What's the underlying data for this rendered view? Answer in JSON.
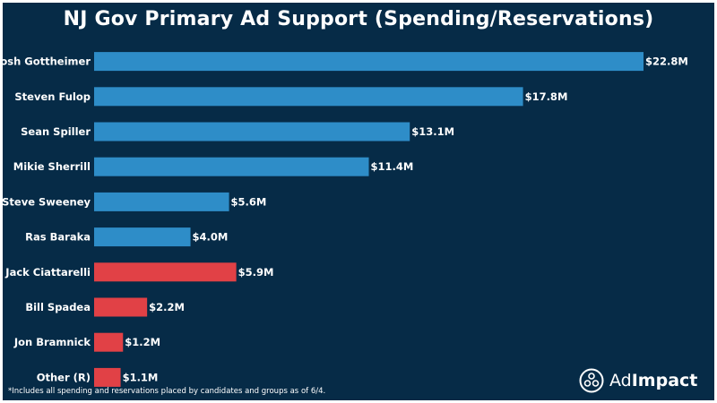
{
  "title": "NJ Gov Primary Ad Support (Spending/Reservations)",
  "footnote": "*Includes all spending and reservations placed by candidates and groups as of 6/4.",
  "logo": {
    "prefix": "Ad",
    "suffix": "Impact"
  },
  "colors": {
    "background": "#062b47",
    "democrat": "#2e8dc8",
    "republican": "#e14146",
    "text": "#ffffff"
  },
  "chart_data": {
    "type": "bar",
    "orientation": "horizontal",
    "title": "NJ Gov Primary Ad Support (Spending/Reservations)",
    "xlabel": "",
    "ylabel": "",
    "unit": "$M",
    "xlim": [
      0,
      22.8
    ],
    "grid": false,
    "categories": [
      "Josh Gottheimer",
      "Steven Fulop",
      "Sean Spiller",
      "Mikie Sherrill",
      "Steve Sweeney",
      "Ras Baraka",
      "Jack Ciattarelli",
      "Bill Spadea",
      "Jon Bramnick",
      "Other (R)"
    ],
    "values": [
      22.8,
      17.8,
      13.1,
      11.4,
      5.6,
      4.0,
      5.9,
      2.2,
      1.2,
      1.1
    ],
    "value_labels": [
      "$22.8M",
      "$17.8M",
      "$13.1M",
      "$11.4M",
      "$5.6M",
      "$4.0M",
      "$5.9M",
      "$2.2M",
      "$1.2M",
      "$1.1M"
    ],
    "party": [
      "D",
      "D",
      "D",
      "D",
      "D",
      "D",
      "R",
      "R",
      "R",
      "R"
    ]
  }
}
